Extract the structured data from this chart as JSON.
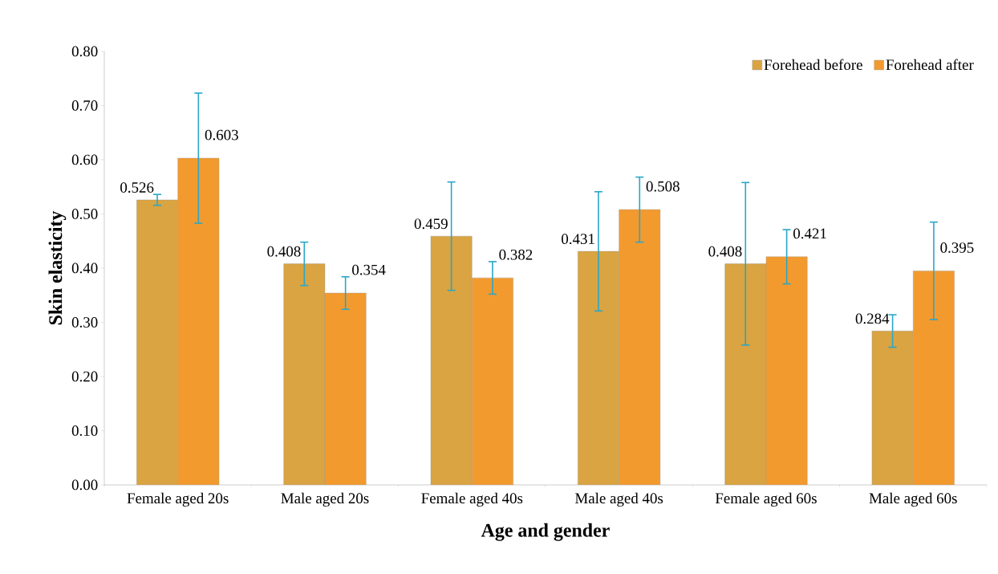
{
  "chart_data": {
    "type": "bar",
    "xlabel": "Age and gender",
    "ylabel": "Skin elasticity",
    "categories": [
      "Female aged 20s",
      "Male aged 20s",
      "Female aged 40s",
      "Male aged 40s",
      "Female aged 60s",
      "Male aged 60s"
    ],
    "series": [
      {
        "name": "Forehead before",
        "color": "#d9a441",
        "values": [
          0.526,
          0.408,
          0.459,
          0.431,
          0.408,
          0.284
        ],
        "errors": [
          0.01,
          0.04,
          0.1,
          0.11,
          0.15,
          0.03
        ]
      },
      {
        "name": "Forehead after",
        "color": "#f39a2e",
        "values": [
          0.603,
          0.354,
          0.382,
          0.508,
          0.421,
          0.395
        ],
        "errors": [
          0.12,
          0.03,
          0.03,
          0.06,
          0.05,
          0.09
        ]
      }
    ],
    "ylim": [
      0,
      0.8
    ],
    "yticks": [
      {
        "value": 0,
        "label": "0.00"
      },
      {
        "value": 0.1,
        "label": "0.10"
      },
      {
        "value": 0.2,
        "label": "0.20"
      },
      {
        "value": 0.3,
        "label": "0.30"
      },
      {
        "value": 0.4,
        "label": "0.40"
      },
      {
        "value": 0.5,
        "label": "0.50"
      },
      {
        "value": 0.6,
        "label": "0.60"
      },
      {
        "value": 0.7,
        "label": "0.70"
      },
      {
        "value": 0.8,
        "label": "0.80"
      }
    ],
    "data_labels": true,
    "legend": "top right"
  }
}
